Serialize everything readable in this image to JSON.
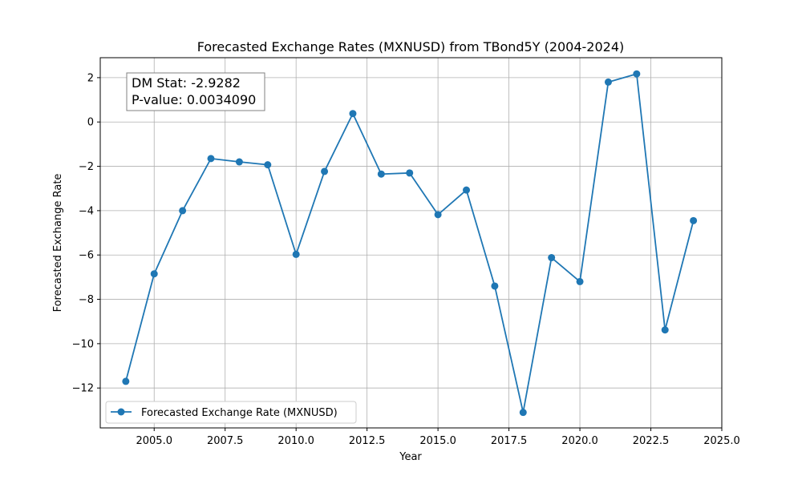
{
  "chart_data": {
    "type": "line",
    "title": "Forecasted Exchange Rates (MXNUSD) from TBond5Y (2004-2024)",
    "xlabel": "Year",
    "ylabel": "Forecasted Exchange Rate",
    "xlim": [
      2003.1,
      2025.0
    ],
    "ylim": [
      -13.8,
      2.9
    ],
    "x_ticks": [
      2005,
      2007.5,
      2010,
      2012.5,
      2015,
      2017.5,
      2020,
      2022.5,
      2025
    ],
    "x_tick_labels": [
      "2005.0",
      "2007.5",
      "2010.0",
      "2012.5",
      "2015.0",
      "2017.5",
      "2020.0",
      "2022.5",
      "2025.0"
    ],
    "y_ticks": [
      -12,
      -10,
      -8,
      -6,
      -4,
      -2,
      0,
      2
    ],
    "y_tick_labels": [
      "−12",
      "−10",
      "−8",
      "−6",
      "−4",
      "−2",
      "0",
      "2"
    ],
    "grid": true,
    "legend_position": "lower-left",
    "series": [
      {
        "name": "Forecasted Exchange Rate (MXNUSD)",
        "color": "#1f77b4",
        "marker": "circle",
        "x": [
          2004,
          2005,
          2006,
          2007,
          2008,
          2009,
          2010,
          2011,
          2012,
          2013,
          2014,
          2015,
          2016,
          2017,
          2018,
          2019,
          2020,
          2021,
          2022,
          2023,
          2024
        ],
        "values": [
          -11.7,
          -6.85,
          -4.0,
          -1.65,
          -1.8,
          -1.93,
          -5.97,
          -2.23,
          0.38,
          -2.35,
          -2.3,
          -4.18,
          -3.07,
          -7.4,
          -13.1,
          -6.12,
          -7.2,
          1.8,
          2.17,
          -9.38,
          -4.45
        ]
      }
    ],
    "annotation": {
      "line1": "DM Stat: -2.9282",
      "line2": "P-value: 0.0034090"
    }
  }
}
